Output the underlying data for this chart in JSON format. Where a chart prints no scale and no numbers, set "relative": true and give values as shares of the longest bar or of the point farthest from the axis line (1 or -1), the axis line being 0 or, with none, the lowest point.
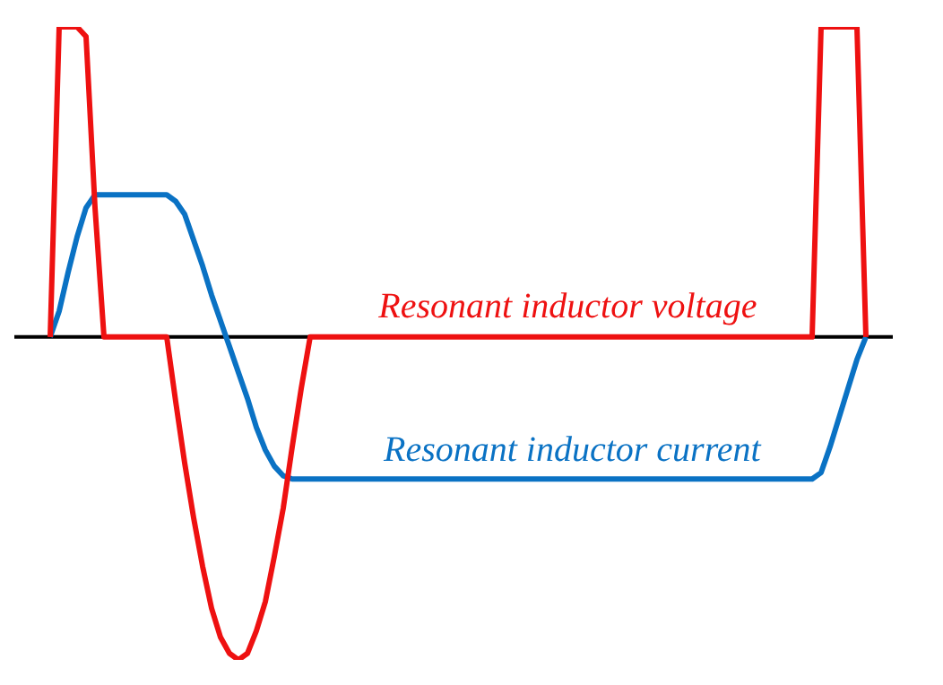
{
  "chart_data": {
    "type": "line",
    "relative": true,
    "tick_labels": false,
    "grid": false,
    "legend": false,
    "marker": "none",
    "line_style": "solid",
    "categories": [
      null,
      null,
      null,
      null,
      null,
      null,
      null,
      null,
      null,
      null,
      null,
      null,
      null,
      null,
      null,
      null,
      null,
      null,
      null,
      null,
      null,
      null,
      null,
      null,
      null,
      null,
      null,
      null,
      null,
      null,
      null,
      null,
      null,
      null,
      null,
      null,
      null,
      null,
      null,
      null,
      null,
      null,
      null,
      null,
      null,
      null,
      null,
      null,
      null,
      null,
      null,
      null,
      null,
      null,
      null,
      null,
      null,
      null,
      null,
      null,
      null,
      null,
      null,
      null,
      null,
      null,
      null,
      null,
      null,
      null,
      null,
      null,
      null,
      null,
      null,
      null,
      null,
      null,
      null,
      null,
      null,
      null,
      null,
      null,
      null,
      null,
      null,
      null,
      null,
      null,
      null,
      null,
      null,
      null,
      null,
      null,
      null,
      null,
      null
    ],
    "series": [
      {
        "name": "Resonant inductor voltage",
        "color": "#ee1111",
        "values": [
          null,
          null,
          null,
          null,
          0,
          0.96,
          0.96,
          0.96,
          0.93,
          0.4,
          0,
          0,
          0,
          0,
          0,
          0,
          0,
          0,
          -0.2,
          -0.39,
          -0.56,
          -0.71,
          -0.84,
          -0.93,
          -0.98,
          -1,
          -0.98,
          -0.91,
          -0.82,
          -0.68,
          -0.53,
          -0.34,
          -0.16,
          0,
          0,
          0,
          0,
          0,
          0,
          0,
          0,
          0,
          0,
          0,
          0,
          0,
          0,
          0,
          0,
          0,
          0,
          0,
          0,
          0,
          0,
          0,
          0,
          0,
          0,
          0,
          0,
          0,
          0,
          0,
          0,
          0,
          0,
          0,
          0,
          0,
          0,
          0,
          0,
          0,
          0,
          0,
          0,
          0,
          0,
          0,
          0,
          0,
          0,
          0,
          0,
          0,
          0,
          0,
          0,
          0,
          0.96,
          0.96,
          0.96,
          0.96,
          0.96,
          0,
          null,
          null,
          null
        ]
      },
      {
        "name": "Resonant inductor current",
        "color": "#0a72c4",
        "values": [
          null,
          null,
          null,
          null,
          0,
          0.08,
          0.2,
          0.31,
          0.4,
          0.44,
          0.44,
          0.44,
          0.44,
          0.44,
          0.44,
          0.44,
          0.44,
          0.44,
          0.42,
          0.38,
          0.3,
          0.22,
          0.13,
          0.05,
          -0.03,
          -0.11,
          -0.19,
          -0.28,
          -0.35,
          -0.4,
          -0.43,
          -0.44,
          -0.44,
          -0.44,
          -0.44,
          -0.44,
          -0.44,
          -0.44,
          -0.44,
          -0.44,
          -0.44,
          -0.44,
          -0.44,
          -0.44,
          -0.44,
          -0.44,
          -0.44,
          -0.44,
          -0.44,
          -0.44,
          -0.44,
          -0.44,
          -0.44,
          -0.44,
          -0.44,
          -0.44,
          -0.44,
          -0.44,
          -0.44,
          -0.44,
          -0.44,
          -0.44,
          -0.44,
          -0.44,
          -0.44,
          -0.44,
          -0.44,
          -0.44,
          -0.44,
          -0.44,
          -0.44,
          -0.44,
          -0.44,
          -0.44,
          -0.44,
          -0.44,
          -0.44,
          -0.44,
          -0.44,
          -0.44,
          -0.44,
          -0.44,
          -0.44,
          -0.44,
          -0.44,
          -0.44,
          -0.44,
          -0.44,
          -0.44,
          -0.44,
          -0.42,
          -0.34,
          -0.25,
          -0.16,
          -0.07,
          0,
          null,
          null,
          null
        ]
      }
    ]
  }
}
